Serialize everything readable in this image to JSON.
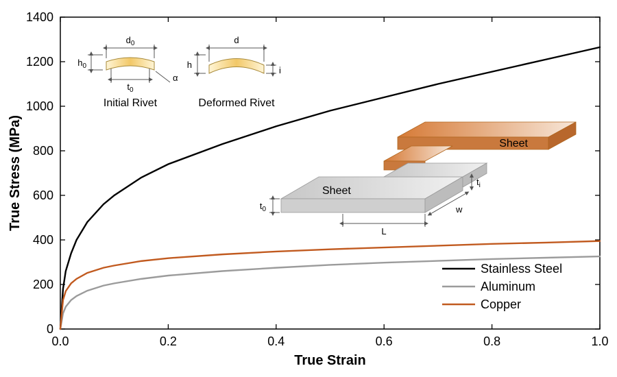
{
  "chart": {
    "type": "line",
    "xlabel": "True Strain",
    "ylabel": "True Stress (MPa)",
    "label_fontsize": 20,
    "tick_fontsize": 18,
    "xlim": [
      0.0,
      1.0
    ],
    "ylim": [
      0,
      1400
    ],
    "xtick_step": 0.2,
    "ytick_step": 200,
    "background_color": "#ffffff",
    "border_color": "#000000",
    "series": [
      {
        "name": "Stainless Steel",
        "color": "#000000",
        "line_width": 2.4,
        "x": [
          0,
          0.005,
          0.01,
          0.02,
          0.03,
          0.05,
          0.08,
          0.1,
          0.15,
          0.2,
          0.3,
          0.4,
          0.5,
          0.6,
          0.7,
          0.8,
          0.9,
          1.0
        ],
        "y": [
          0,
          180,
          260,
          340,
          400,
          480,
          560,
          600,
          680,
          740,
          830,
          910,
          980,
          1040,
          1100,
          1155,
          1210,
          1265
        ]
      },
      {
        "name": "Aluminum",
        "color": "#9b9b9b",
        "line_width": 2.4,
        "x": [
          0,
          0.005,
          0.01,
          0.02,
          0.03,
          0.05,
          0.08,
          0.1,
          0.15,
          0.2,
          0.3,
          0.4,
          0.5,
          0.6,
          0.7,
          0.8,
          0.9,
          1.0
        ],
        "y": [
          0,
          70,
          100,
          130,
          148,
          172,
          195,
          205,
          225,
          240,
          260,
          275,
          288,
          298,
          306,
          314,
          320,
          326
        ]
      },
      {
        "name": "Copper",
        "color": "#c15a1f",
        "line_width": 2.4,
        "x": [
          0,
          0.005,
          0.01,
          0.02,
          0.03,
          0.05,
          0.08,
          0.1,
          0.15,
          0.2,
          0.3,
          0.4,
          0.5,
          0.6,
          0.7,
          0.8,
          0.9,
          1.0
        ],
        "y": [
          0,
          130,
          170,
          205,
          225,
          252,
          275,
          285,
          305,
          318,
          335,
          348,
          358,
          366,
          374,
          382,
          388,
          395
        ]
      }
    ],
    "legend": {
      "position": "lower-right",
      "items": [
        "Stainless Steel",
        "Aluminum",
        "Copper"
      ]
    },
    "inset_diagrams": {
      "initial_rivet": {
        "label": "Initial Rivet",
        "params": [
          "d₀",
          "h₀",
          "t₀",
          "α"
        ],
        "fill_color": "#f2c868",
        "stroke_color": "#808080"
      },
      "deformed_rivet": {
        "label": "Deformed Rivet",
        "params": [
          "d",
          "h",
          "i"
        ],
        "fill_color": "#f2c868",
        "stroke_color": "#808080"
      },
      "sheets": {
        "label_top": "Sheet",
        "label_bottom": "Sheet",
        "params": [
          "t₀",
          "tᵢ",
          "L",
          "w"
        ],
        "top_color_start": "#d67a36",
        "top_color_end": "#f7e6d8",
        "bottom_color": "#d9d9d9"
      }
    }
  }
}
